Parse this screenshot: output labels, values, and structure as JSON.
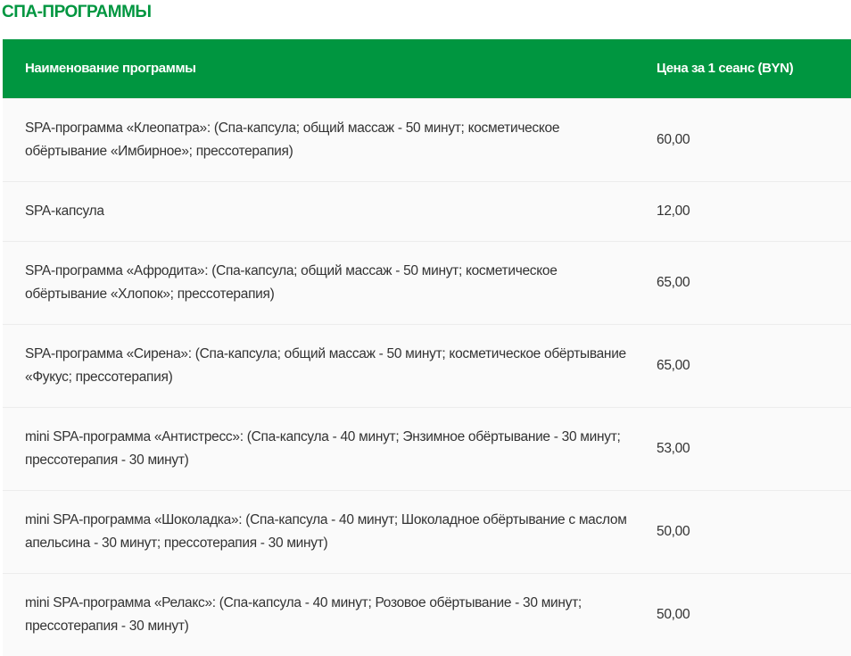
{
  "title": "СПА-ПРОГРАММЫ",
  "accent_color": "#009640",
  "table": {
    "headers": {
      "name": "Наименование программы",
      "price": "Цена за 1 сеанс (BYN)"
    },
    "rows": [
      {
        "name": "SPA-программа «Клеопатра»: (Спа-капсула; общий массаж - 50 минут; косметическое обёртывание «Имбирное»; прессотерапия)",
        "price": "60,00"
      },
      {
        "name": "SPA-капсула",
        "price": "12,00"
      },
      {
        "name": "SPA-программа «Афродита»: (Спа-капсула; общий массаж - 50 минут; косметическое обёртывание «Хлопок»; прессотерапия)",
        "price": "65,00"
      },
      {
        "name": "SPA-программа «Сирена»: (Спа-капсула; общий массаж - 50 минут; косметическое обёртывание «Фукус; прессотерапия)",
        "price": "65,00"
      },
      {
        "name": "mini SPA-программа «Антистресс»: (Спа-капсула - 40 минут; Энзимное обёртывание - 30 минут; прессотерапия - 30 минут)",
        "price": "53,00"
      },
      {
        "name": "mini SPA-программа «Шоколадка»: (Спа-капсула - 40 минут; Шоколадное обёртывание с маслом апельсина - 30 минут; прессотерапия - 30 минут)",
        "price": "50,00"
      },
      {
        "name": "mini SPA-программа «Релакс»: (Спа-капсула - 40 минут; Розовое обёртывание - 30 минут; прессотерапия - 30 минут)",
        "price": "50,00"
      }
    ]
  }
}
